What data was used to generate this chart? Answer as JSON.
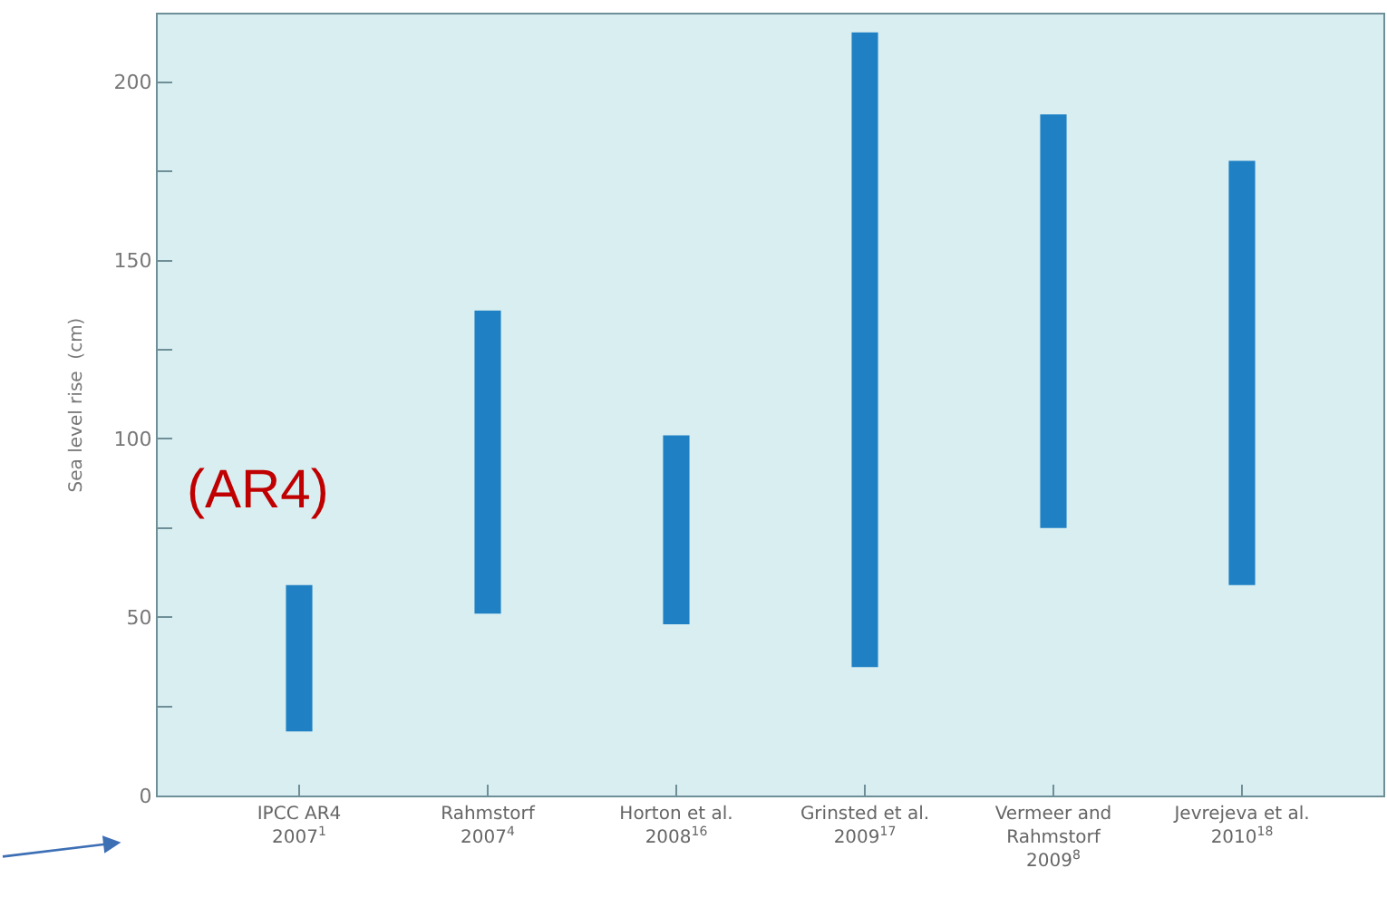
{
  "chart_data": {
    "type": "bar",
    "categories": [
      "IPCC AR4\n2007$^{1}$",
      "Rahmstorf\n2007$^{4}$",
      "Horton et al.\n2008$^{16}$",
      "Grinsted et al.\n2009$^{17}$",
      "Vermeer and\nRahmstorf\n2009$^{8}$",
      "Jevrejeva et al.\n2010$^{18}$"
    ],
    "base": [
      18,
      51,
      48,
      36,
      75,
      59
    ],
    "values": [
      41,
      85,
      53,
      178,
      116,
      119
    ],
    "color": "#1f80c4",
    "ylabel": "Sea level rise  (cm)",
    "ylim": [
      0,
      219
    ],
    "yticks": [
      0,
      {
        "value": 25,
        "label": null
      },
      50,
      {
        "value": 75,
        "label": null
      },
      100,
      {
        "value": 125,
        "label": null
      },
      150,
      {
        "value": 175,
        "label": null
      },
      200
    ],
    "annotations": [
      "(AR4)"
    ]
  }
}
